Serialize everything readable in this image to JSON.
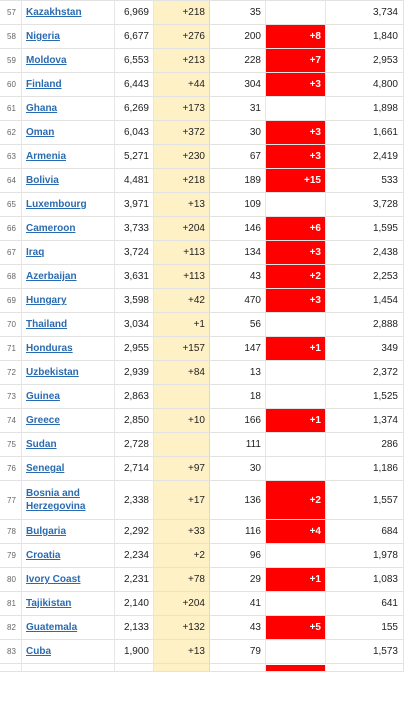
{
  "colors": {
    "link": "#2a6bb0",
    "new_cases_bg": "#fff1c6",
    "new_deaths_bg": "#ff0000"
  },
  "rows": [
    {
      "rank": "57",
      "country": "Kazakhstan",
      "cases": "6,969",
      "new_cases": "+218",
      "deaths": "35",
      "new_deaths": "",
      "recovered": "3,734"
    },
    {
      "rank": "58",
      "country": "Nigeria",
      "cases": "6,677",
      "new_cases": "+276",
      "deaths": "200",
      "new_deaths": "+8",
      "recovered": "1,840"
    },
    {
      "rank": "59",
      "country": "Moldova",
      "cases": "6,553",
      "new_cases": "+213",
      "deaths": "228",
      "new_deaths": "+7",
      "recovered": "2,953"
    },
    {
      "rank": "60",
      "country": "Finland",
      "cases": "6,443",
      "new_cases": "+44",
      "deaths": "304",
      "new_deaths": "+3",
      "recovered": "4,800"
    },
    {
      "rank": "61",
      "country": "Ghana",
      "cases": "6,269",
      "new_cases": "+173",
      "deaths": "31",
      "new_deaths": "",
      "recovered": "1,898"
    },
    {
      "rank": "62",
      "country": "Oman",
      "cases": "6,043",
      "new_cases": "+372",
      "deaths": "30",
      "new_deaths": "+3",
      "recovered": "1,661"
    },
    {
      "rank": "63",
      "country": "Armenia",
      "cases": "5,271",
      "new_cases": "+230",
      "deaths": "67",
      "new_deaths": "+3",
      "recovered": "2,419"
    },
    {
      "rank": "64",
      "country": "Bolivia",
      "cases": "4,481",
      "new_cases": "+218",
      "deaths": "189",
      "new_deaths": "+15",
      "recovered": "533"
    },
    {
      "rank": "65",
      "country": "Luxembourg",
      "cases": "3,971",
      "new_cases": "+13",
      "deaths": "109",
      "new_deaths": "",
      "recovered": "3,728"
    },
    {
      "rank": "66",
      "country": "Cameroon",
      "cases": "3,733",
      "new_cases": "+204",
      "deaths": "146",
      "new_deaths": "+6",
      "recovered": "1,595"
    },
    {
      "rank": "67",
      "country": "Iraq",
      "cases": "3,724",
      "new_cases": "+113",
      "deaths": "134",
      "new_deaths": "+3",
      "recovered": "2,438"
    },
    {
      "rank": "68",
      "country": "Azerbaijan",
      "cases": "3,631",
      "new_cases": "+113",
      "deaths": "43",
      "new_deaths": "+2",
      "recovered": "2,253"
    },
    {
      "rank": "69",
      "country": "Hungary",
      "cases": "3,598",
      "new_cases": "+42",
      "deaths": "470",
      "new_deaths": "+3",
      "recovered": "1,454"
    },
    {
      "rank": "70",
      "country": "Thailand",
      "cases": "3,034",
      "new_cases": "+1",
      "deaths": "56",
      "new_deaths": "",
      "recovered": "2,888"
    },
    {
      "rank": "71",
      "country": "Honduras",
      "cases": "2,955",
      "new_cases": "+157",
      "deaths": "147",
      "new_deaths": "+1",
      "recovered": "349"
    },
    {
      "rank": "72",
      "country": "Uzbekistan",
      "cases": "2,939",
      "new_cases": "+84",
      "deaths": "13",
      "new_deaths": "",
      "recovered": "2,372"
    },
    {
      "rank": "73",
      "country": "Guinea",
      "cases": "2,863",
      "new_cases": "",
      "deaths": "18",
      "new_deaths": "",
      "recovered": "1,525"
    },
    {
      "rank": "74",
      "country": "Greece",
      "cases": "2,850",
      "new_cases": "+10",
      "deaths": "166",
      "new_deaths": "+1",
      "recovered": "1,374"
    },
    {
      "rank": "75",
      "country": "Sudan",
      "cases": "2,728",
      "new_cases": "",
      "deaths": "111",
      "new_deaths": "",
      "recovered": "286"
    },
    {
      "rank": "76",
      "country": "Senegal",
      "cases": "2,714",
      "new_cases": "+97",
      "deaths": "30",
      "new_deaths": "",
      "recovered": "1,186"
    },
    {
      "rank": "77",
      "country": "Bosnia and Herzegovina",
      "cases": "2,338",
      "new_cases": "+17",
      "deaths": "136",
      "new_deaths": "+2",
      "recovered": "1,557",
      "tall": true
    },
    {
      "rank": "78",
      "country": "Bulgaria",
      "cases": "2,292",
      "new_cases": "+33",
      "deaths": "116",
      "new_deaths": "+4",
      "recovered": "684"
    },
    {
      "rank": "79",
      "country": "Croatia",
      "cases": "2,234",
      "new_cases": "+2",
      "deaths": "96",
      "new_deaths": "",
      "recovered": "1,978"
    },
    {
      "rank": "80",
      "country": "Ivory Coast",
      "cases": "2,231",
      "new_cases": "+78",
      "deaths": "29",
      "new_deaths": "+1",
      "recovered": "1,083"
    },
    {
      "rank": "81",
      "country": "Tajikistan",
      "cases": "2,140",
      "new_cases": "+204",
      "deaths": "41",
      "new_deaths": "",
      "recovered": "641"
    },
    {
      "rank": "82",
      "country": "Guatemala",
      "cases": "2,133",
      "new_cases": "+132",
      "deaths": "43",
      "new_deaths": "+5",
      "recovered": "155"
    },
    {
      "rank": "83",
      "country": "Cuba",
      "cases": "1,900",
      "new_cases": "+13",
      "deaths": "79",
      "new_deaths": "",
      "recovered": "1,573"
    },
    {
      "rank": "",
      "country": "",
      "cases": "",
      "new_cases": "",
      "deaths": "",
      "new_deaths": "",
      "recovered": "",
      "partial_red": true
    }
  ]
}
